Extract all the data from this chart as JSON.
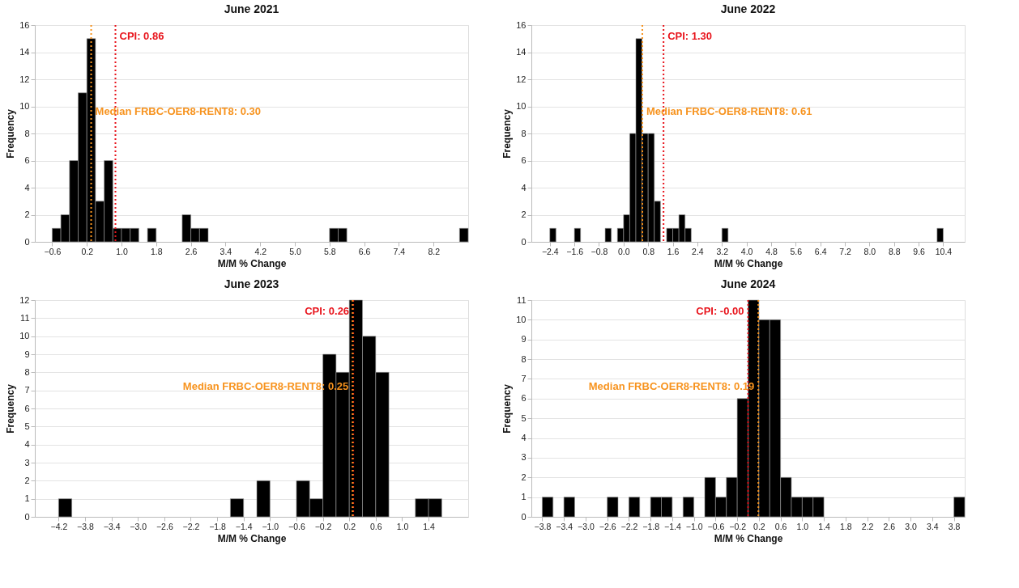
{
  "chart_data": [
    {
      "type": "histogram",
      "title": "June 2021",
      "xlabel": "M/M % Change",
      "ylabel": "Frequency",
      "color": "#000000",
      "grid": "y",
      "bins": [
        -0.6,
        -0.4,
        -0.2,
        0,
        0.2,
        0.4,
        0.6,
        0.8,
        1.0,
        1.2,
        1.4,
        1.6,
        1.8,
        2.0,
        2.2,
        2.4,
        2.6,
        2.8,
        3.0,
        3.2,
        3.4,
        3.6,
        3.8,
        4.0,
        4.2,
        4.4,
        4.6,
        4.8,
        5.0,
        5.2,
        5.4,
        5.6,
        5.8,
        6.0,
        6.2,
        6.4,
        6.6,
        6.8,
        7.0,
        7.2,
        7.4,
        7.6,
        7.8,
        8.0,
        8.2,
        8.4,
        8.6,
        8.8,
        9.0
      ],
      "values": [
        1,
        2,
        6,
        11,
        15,
        3,
        6,
        1,
        1,
        1,
        0,
        1,
        0,
        0,
        0,
        2,
        1,
        1,
        0,
        0,
        0,
        0,
        0,
        0,
        0,
        0,
        0,
        0,
        0,
        0,
        0,
        0,
        1,
        1,
        0,
        0,
        0,
        0,
        0,
        0,
        0,
        0,
        0,
        0,
        0,
        0,
        0,
        1
      ],
      "xlim": [
        -1.0,
        9.0
      ],
      "xticks": [
        -0.6,
        0.2,
        {
          "value": 1,
          "label": "1.0"
        },
        1.8,
        2.6,
        3.4,
        4.2,
        {
          "value": 5,
          "label": "5.0"
        },
        5.8,
        6.6,
        7.4,
        8.2
      ],
      "ylim": [
        0,
        16
      ],
      "yticks": [
        0,
        2,
        4,
        6,
        8,
        10,
        12,
        14,
        16
      ],
      "ref_lines": [
        {
          "axis": "x",
          "value": 0.86,
          "label": "CPI: 0.86",
          "color": "#e8141c",
          "line_style": "dotted"
        },
        {
          "axis": "x",
          "value": 0.3,
          "label": "Median FRBC-OER8-RENT8: 0.30",
          "color": "#f7931e",
          "line_style": "dotted"
        }
      ]
    },
    {
      "type": "histogram",
      "title": "June 2022",
      "xlabel": "M/M % Change",
      "ylabel": "Frequency",
      "color": "#000000",
      "grid": "y",
      "bins": [
        -2.4,
        -2.2,
        -2.0,
        -1.8,
        -1.6,
        -1.4,
        -1.2,
        -1.0,
        -0.8,
        -0.6,
        -0.4,
        -0.2,
        0,
        0.2,
        0.4,
        0.6,
        0.8,
        1.0,
        1.2,
        1.4,
        1.6,
        1.8,
        2.0,
        2.2,
        2.4,
        2.6,
        2.8,
        3.0,
        3.2,
        3.4,
        3.6,
        3.8,
        4.0,
        4.2,
        4.4,
        4.6,
        4.8,
        5.0,
        5.2,
        5.4,
        5.6,
        5.8,
        6.0,
        6.2,
        6.4,
        6.6,
        6.8,
        7.0,
        7.2,
        7.4,
        7.6,
        7.8,
        8.0,
        8.2,
        8.4,
        8.6,
        8.8,
        9.0,
        9.2,
        9.4,
        9.6,
        9.8,
        10.0,
        10.2,
        10.4
      ],
      "values": [
        1,
        0,
        0,
        0,
        1,
        0,
        0,
        0,
        0,
        1,
        0,
        1,
        2,
        8,
        15,
        8,
        8,
        3,
        0,
        1,
        1,
        2,
        1,
        0,
        0,
        0,
        0,
        0,
        1,
        0,
        0,
        0,
        0,
        0,
        0,
        0,
        0,
        0,
        0,
        0,
        0,
        0,
        0,
        0,
        0,
        0,
        0,
        0,
        0,
        0,
        0,
        0,
        0,
        0,
        0,
        0,
        0,
        0,
        0,
        0,
        0,
        0,
        0,
        1
      ],
      "xlim": [
        -3.0,
        11.1
      ],
      "xticks": [
        -2.4,
        -1.6,
        -0.8,
        {
          "value": 0,
          "label": "0.0"
        },
        0.8,
        1.6,
        2.4,
        3.2,
        {
          "value": 4,
          "label": "4.0"
        },
        4.8,
        5.6,
        6.4,
        7.2,
        {
          "value": 8,
          "label": "8.0"
        },
        8.8,
        9.6,
        10.4
      ],
      "ylim": [
        0,
        16
      ],
      "yticks": [
        0,
        2,
        4,
        6,
        8,
        10,
        12,
        14,
        16
      ],
      "ref_lines": [
        {
          "axis": "x",
          "value": 1.3,
          "label": "CPI: 1.30",
          "color": "#e8141c",
          "line_style": "dotted"
        },
        {
          "axis": "x",
          "value": 0.61,
          "label": "Median FRBC-OER8-RENT8: 0.61",
          "color": "#f7931e",
          "line_style": "dotted"
        }
      ]
    },
    {
      "type": "histogram",
      "title": "June 2023",
      "xlabel": "M/M % Change",
      "ylabel": "Frequency",
      "color": "#000000",
      "grid": "y",
      "bins": [
        -4.2,
        -4.0,
        -3.8,
        -3.6,
        -3.4,
        -3.2,
        -3.0,
        -2.8,
        -2.6,
        -2.4,
        -2.2,
        -2.0,
        -1.8,
        -1.6,
        -1.4,
        -1.2,
        -1.0,
        -0.8,
        -0.6,
        -0.4,
        -0.2,
        0,
        0.2,
        0.4,
        0.6,
        0.8,
        1.0,
        1.2,
        1.4,
        1.6
      ],
      "values": [
        1,
        0,
        0,
        0,
        0,
        0,
        0,
        0,
        0,
        0,
        0,
        0,
        0,
        1,
        0,
        2,
        0,
        0,
        2,
        1,
        9,
        8,
        12,
        10,
        8,
        0,
        0,
        1,
        1
      ],
      "xlim": [
        -4.56,
        2.0
      ],
      "xticks": [
        -4.2,
        -3.8,
        -3.4,
        {
          "value": -3,
          "label": "−3.0"
        },
        -2.6,
        -2.2,
        -1.8,
        -1.4,
        {
          "value": -1,
          "label": "−1.0"
        },
        -0.6,
        -0.2,
        0.2,
        0.6,
        {
          "value": 1,
          "label": "1.0"
        },
        1.4
      ],
      "ylim": [
        0,
        12
      ],
      "yticks": [
        0,
        1,
        2,
        3,
        4,
        5,
        6,
        7,
        8,
        9,
        10,
        11,
        12
      ],
      "ref_lines": [
        {
          "axis": "x",
          "value": 0.26,
          "label": "CPI: 0.26",
          "color": "#e8141c",
          "line_style": "dotted"
        },
        {
          "axis": "x",
          "value": 0.25,
          "label": "Median FRBC-OER8-RENT8: 0.25",
          "color": "#f7931e",
          "line_style": "dotted"
        }
      ]
    },
    {
      "type": "histogram",
      "title": "June 2024",
      "xlabel": "M/M % Change",
      "ylabel": "Frequency",
      "color": "#000000",
      "grid": "y",
      "bins": [
        -3.8,
        -3.6,
        -3.4,
        -3.2,
        -3.0,
        -2.8,
        -2.6,
        -2.4,
        -2.2,
        -2.0,
        -1.8,
        -1.6,
        -1.4,
        -1.2,
        -1.0,
        -0.8,
        -0.6,
        -0.4,
        -0.2,
        0,
        0.2,
        0.4,
        0.6,
        0.8,
        1.0,
        1.2,
        1.4,
        1.6,
        1.8,
        2.0,
        2.2,
        2.4,
        2.6,
        2.8,
        3.0,
        3.2,
        3.4,
        3.6,
        3.8,
        4.0
      ],
      "values": [
        1,
        0,
        1,
        0,
        0,
        0,
        1,
        0,
        1,
        0,
        1,
        1,
        0,
        1,
        0,
        2,
        1,
        2,
        6,
        11,
        10,
        10,
        2,
        1,
        1,
        1,
        0,
        0,
        0,
        0,
        0,
        0,
        0,
        0,
        0,
        0,
        0,
        0,
        1
      ],
      "xlim": [
        -4.0,
        4.0
      ],
      "xticks": [
        -3.8,
        -3.4,
        {
          "value": -3,
          "label": "−3.0"
        },
        -2.6,
        -2.2,
        -1.8,
        -1.4,
        {
          "value": -1,
          "label": "−1.0"
        },
        -0.6,
        -0.2,
        0.2,
        0.6,
        {
          "value": 1,
          "label": "1.0"
        },
        1.4,
        1.8,
        2.2,
        2.6,
        {
          "value": 3,
          "label": "3.0"
        },
        3.4,
        3.8
      ],
      "ylim": [
        0,
        11
      ],
      "yticks": [
        0,
        1,
        2,
        3,
        4,
        5,
        6,
        7,
        8,
        9,
        10,
        11
      ],
      "ref_lines": [
        {
          "axis": "x",
          "value": 0,
          "label": "CPI: -0.00",
          "color": "#e8141c",
          "line_style": "dotted"
        },
        {
          "axis": "x",
          "value": 0.19,
          "label": "Median FRBC-OER8-RENT8: 0.19",
          "color": "#f7931e",
          "line_style": "dotted"
        }
      ]
    }
  ]
}
